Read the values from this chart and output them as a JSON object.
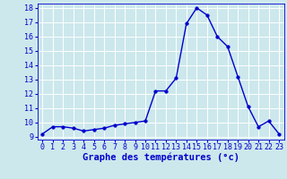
{
  "hours": [
    0,
    1,
    2,
    3,
    4,
    5,
    6,
    7,
    8,
    9,
    10,
    11,
    12,
    13,
    14,
    15,
    16,
    17,
    18,
    19,
    20,
    21,
    22,
    23
  ],
  "temps": [
    9.2,
    9.7,
    9.7,
    9.6,
    9.4,
    9.5,
    9.6,
    9.8,
    9.9,
    10.0,
    10.1,
    12.2,
    12.2,
    13.1,
    16.9,
    18.0,
    17.5,
    16.0,
    15.3,
    13.2,
    11.1,
    9.7,
    10.1,
    9.2
  ],
  "line_color": "#0000cc",
  "marker_color": "#0000cc",
  "bg_color": "#cce8ec",
  "grid_color": "#ffffff",
  "xlabel": "Graphe des températures (°c)",
  "xlabel_color": "#0000cc",
  "tick_color": "#0000cc",
  "ylim": [
    9,
    18
  ],
  "yticks": [
    9,
    10,
    11,
    12,
    13,
    14,
    15,
    16,
    17,
    18
  ],
  "xlim": [
    0,
    23
  ],
  "xticks": [
    0,
    1,
    2,
    3,
    4,
    5,
    6,
    7,
    8,
    9,
    10,
    11,
    12,
    13,
    14,
    15,
    16,
    17,
    18,
    19,
    20,
    21,
    22,
    23
  ],
  "marker_size": 2.5,
  "line_width": 1.0,
  "font_size_ticks": 6,
  "font_size_xlabel": 7.5
}
